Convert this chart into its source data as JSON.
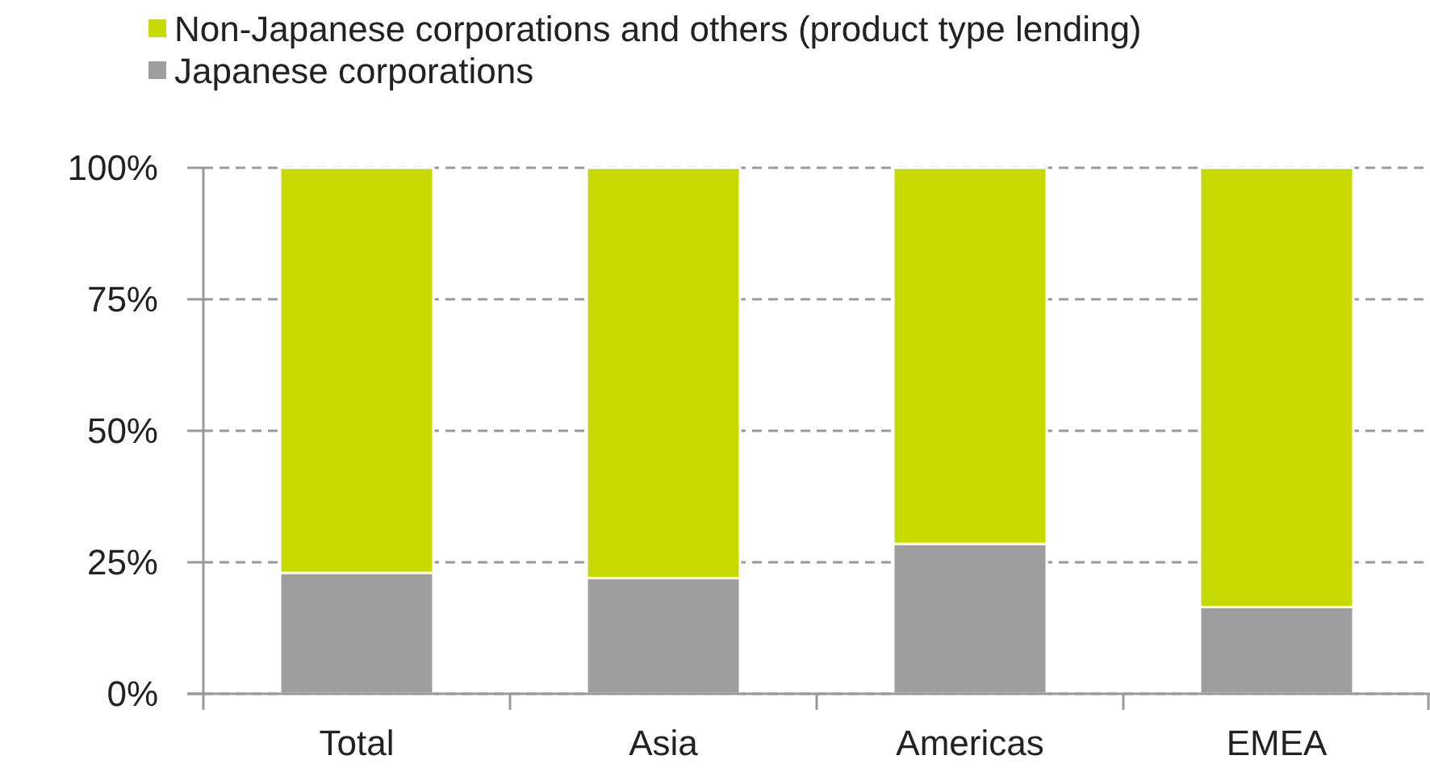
{
  "chart_data": {
    "type": "bar",
    "stacked": true,
    "categories": [
      "Total",
      "Asia",
      "Americas",
      "EMEA"
    ],
    "series": [
      {
        "name": "Japanese corporations",
        "color": "#9e9e9e",
        "values": [
          23,
          22,
          28.5,
          16.5
        ]
      },
      {
        "name": "Non-Japanese corporations and others (product type lending)",
        "color": "#c6d900",
        "values": [
          77,
          78,
          71.5,
          83.5
        ]
      }
    ],
    "ylim": [
      0,
      100
    ],
    "yticks": [
      {
        "value": 0,
        "label": "0%"
      },
      {
        "value": 25,
        "label": "25%"
      },
      {
        "value": 50,
        "label": "50%"
      },
      {
        "value": 75,
        "label": "75%"
      },
      {
        "value": 100,
        "label": "100%"
      }
    ],
    "grid": "y",
    "legend": "top left"
  }
}
